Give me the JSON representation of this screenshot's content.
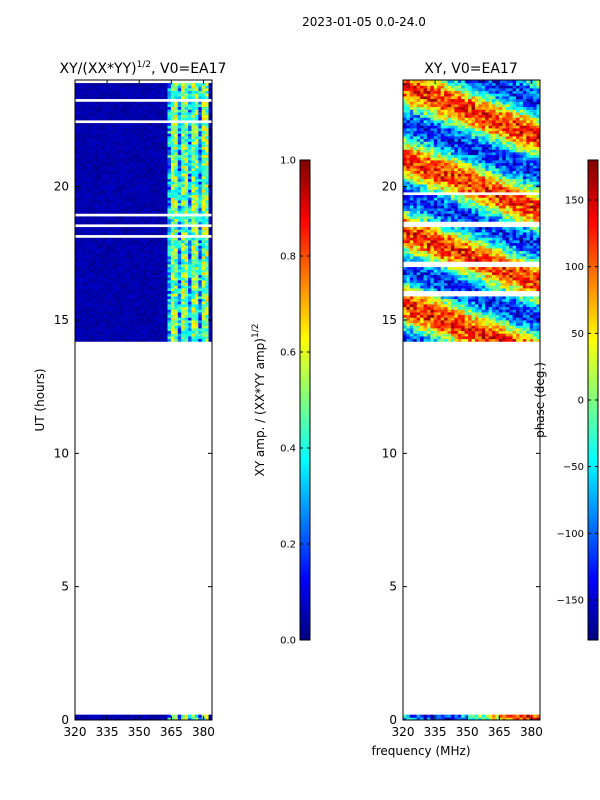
{
  "suptitle": "2023-01-05 0.0-24.0",
  "xlabel_shared": "frequency (MHz)",
  "colormap_stops": [
    "#00007f",
    "#0000ff",
    "#007fff",
    "#00ffff",
    "#7fff7f",
    "#ffff00",
    "#ff7f00",
    "#ff0000",
    "#7f0000"
  ],
  "chart_data": [
    {
      "type": "heatmap",
      "id": "amp",
      "title": "XY/(XX*YY)",
      "title_sup": "1/2",
      "title_suffix": ", V0=EA17",
      "xlabel": "",
      "ylabel": "UT (hours)",
      "xlim": [
        320,
        384
      ],
      "ylim": [
        0,
        24
      ],
      "x_ticks": [
        320,
        335,
        350,
        365,
        380
      ],
      "y_ticks": [
        0,
        5,
        10,
        15,
        20
      ],
      "data_bands_ut": [
        [
          0.0,
          0.2
        ],
        [
          14.2,
          24.0
        ]
      ],
      "band_level": 0.5,
      "background_level": 0.02,
      "colorbar": {
        "label": "XY amp. / (XX*YY amp)",
        "label_sup": "1/2",
        "range": [
          0.0,
          1.0
        ],
        "ticks": [
          0.0,
          0.2,
          0.4,
          0.6,
          0.8,
          1.0
        ],
        "tick_labels": [
          "0.0",
          "0.2",
          "0.4",
          "0.6",
          "0.8",
          "1.0"
        ]
      }
    },
    {
      "type": "heatmap",
      "id": "phase",
      "title": "XY, V0=EA17",
      "xlabel": "frequency (MHz)",
      "ylabel": "",
      "xlim": [
        320,
        384
      ],
      "ylim": [
        0,
        24
      ],
      "x_ticks": [
        320,
        335,
        350,
        365,
        380
      ],
      "y_ticks": [
        0,
        5,
        10,
        15,
        20
      ],
      "data_bands_ut": [
        [
          0.0,
          0.2
        ],
        [
          14.2,
          24.0
        ]
      ],
      "colorbar": {
        "label": "phase (deg.)",
        "range": [
          -180,
          180
        ],
        "ticks": [
          -150,
          -100,
          -50,
          0,
          50,
          100,
          150
        ],
        "tick_labels": [
          "−150",
          "−100",
          "−50",
          "0",
          "50",
          "100",
          "150"
        ]
      }
    }
  ]
}
